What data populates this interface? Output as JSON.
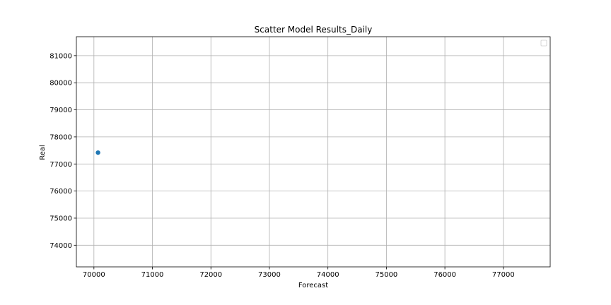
{
  "chart_data": {
    "type": "scatter",
    "title": "Scatter Model Results_Daily",
    "xlabel": "Forecast",
    "ylabel": "Real",
    "xlim": [
      69700,
      77800
    ],
    "ylim": [
      73200,
      81700
    ],
    "xticks": [
      70000,
      71000,
      72000,
      73000,
      74000,
      75000,
      76000,
      77000
    ],
    "yticks": [
      74000,
      75000,
      76000,
      77000,
      78000,
      79000,
      80000,
      81000
    ],
    "grid": true,
    "legend": {
      "placement": "top-right",
      "entries": []
    },
    "series": [
      {
        "color": "#1f77b4",
        "points": [
          {
            "x": 70070,
            "y": 77420
          }
        ]
      }
    ]
  }
}
